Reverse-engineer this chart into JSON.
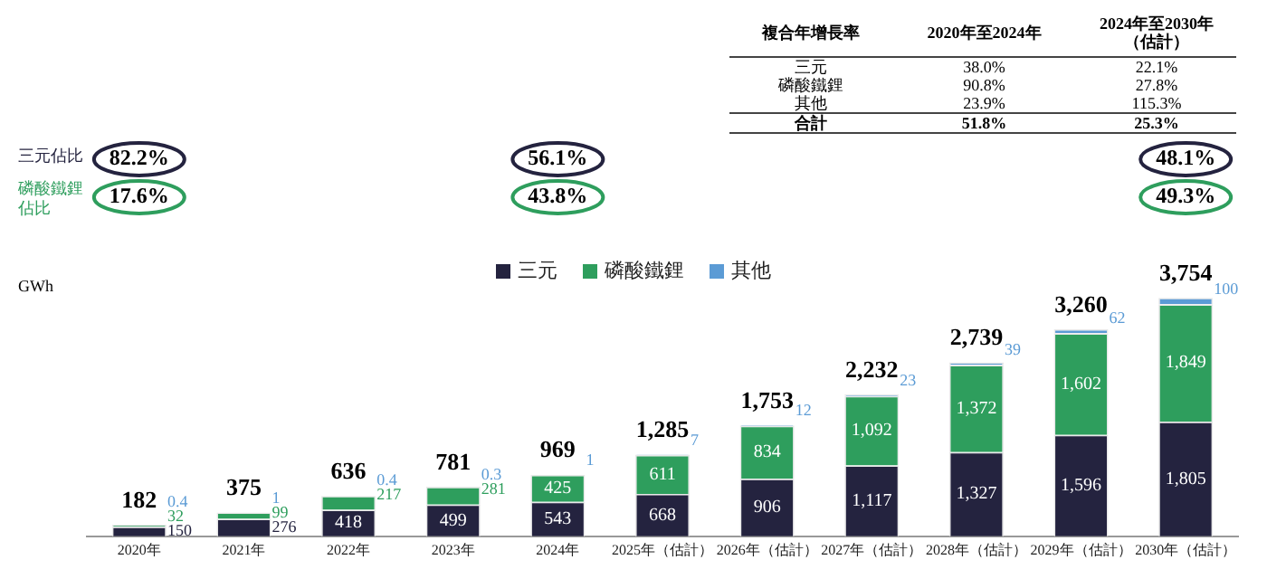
{
  "chart_data": {
    "type": "bar",
    "stacked": true,
    "ylabel": "GWh",
    "legend": "top",
    "categories": [
      "2020年",
      "2021年",
      "2022年",
      "2023年",
      "2024年",
      "2025年（估計）",
      "2026年（估計）",
      "2027年（估計）",
      "2028年（估計）",
      "2029年（估計）",
      "2030年（估計）"
    ],
    "series": [
      {
        "name": "三元",
        "color": "#24233f",
        "values": [
          150,
          276,
          418,
          499,
          543,
          668,
          906,
          1117,
          1327,
          1596,
          1805
        ],
        "value_labels": [
          "150",
          "276",
          "418",
          "499",
          "543",
          "668",
          "906",
          "1,117",
          "1,327",
          "1,596",
          "1,805"
        ]
      },
      {
        "name": "磷酸鐵鋰",
        "color": "#2e9e5d",
        "values": [
          32,
          99,
          217,
          281,
          425,
          611,
          834,
          1092,
          1372,
          1602,
          1849
        ],
        "value_labels": [
          "32",
          "99",
          "217",
          "281",
          "425",
          "611",
          "834",
          "1,092",
          "1,372",
          "1,602",
          "1,849"
        ]
      },
      {
        "name": "其他",
        "color": "#5b9bd5",
        "values": [
          0.4,
          1,
          0.4,
          0.3,
          1,
          7,
          12,
          23,
          39,
          62,
          100
        ],
        "value_labels": [
          "0.4",
          "1",
          "0.4",
          "0.3",
          "1",
          "7",
          "12",
          "23",
          "39",
          "62",
          "100"
        ]
      }
    ],
    "totals": [
      "182",
      "375",
      "636",
      "781",
      "969",
      "1,285",
      "1,753",
      "2,232",
      "2,739",
      "3,260",
      "3,754"
    ],
    "annotations": [
      "複合年增長率",
      "2020年至2024年",
      "2024年至2030年（估計）",
      "三元",
      "38.0%",
      "22.1%",
      "磷酸鐵鋰",
      "90.8%",
      "27.8%",
      "其他",
      "23.9%",
      "115.3%",
      "合計",
      "51.8%",
      "25.3%",
      "三元佔比",
      "82.2%",
      "56.1%",
      "48.1%",
      "磷酸鐵鋰佔比",
      "17.6%",
      "43.8%",
      "49.3%"
    ]
  }
}
